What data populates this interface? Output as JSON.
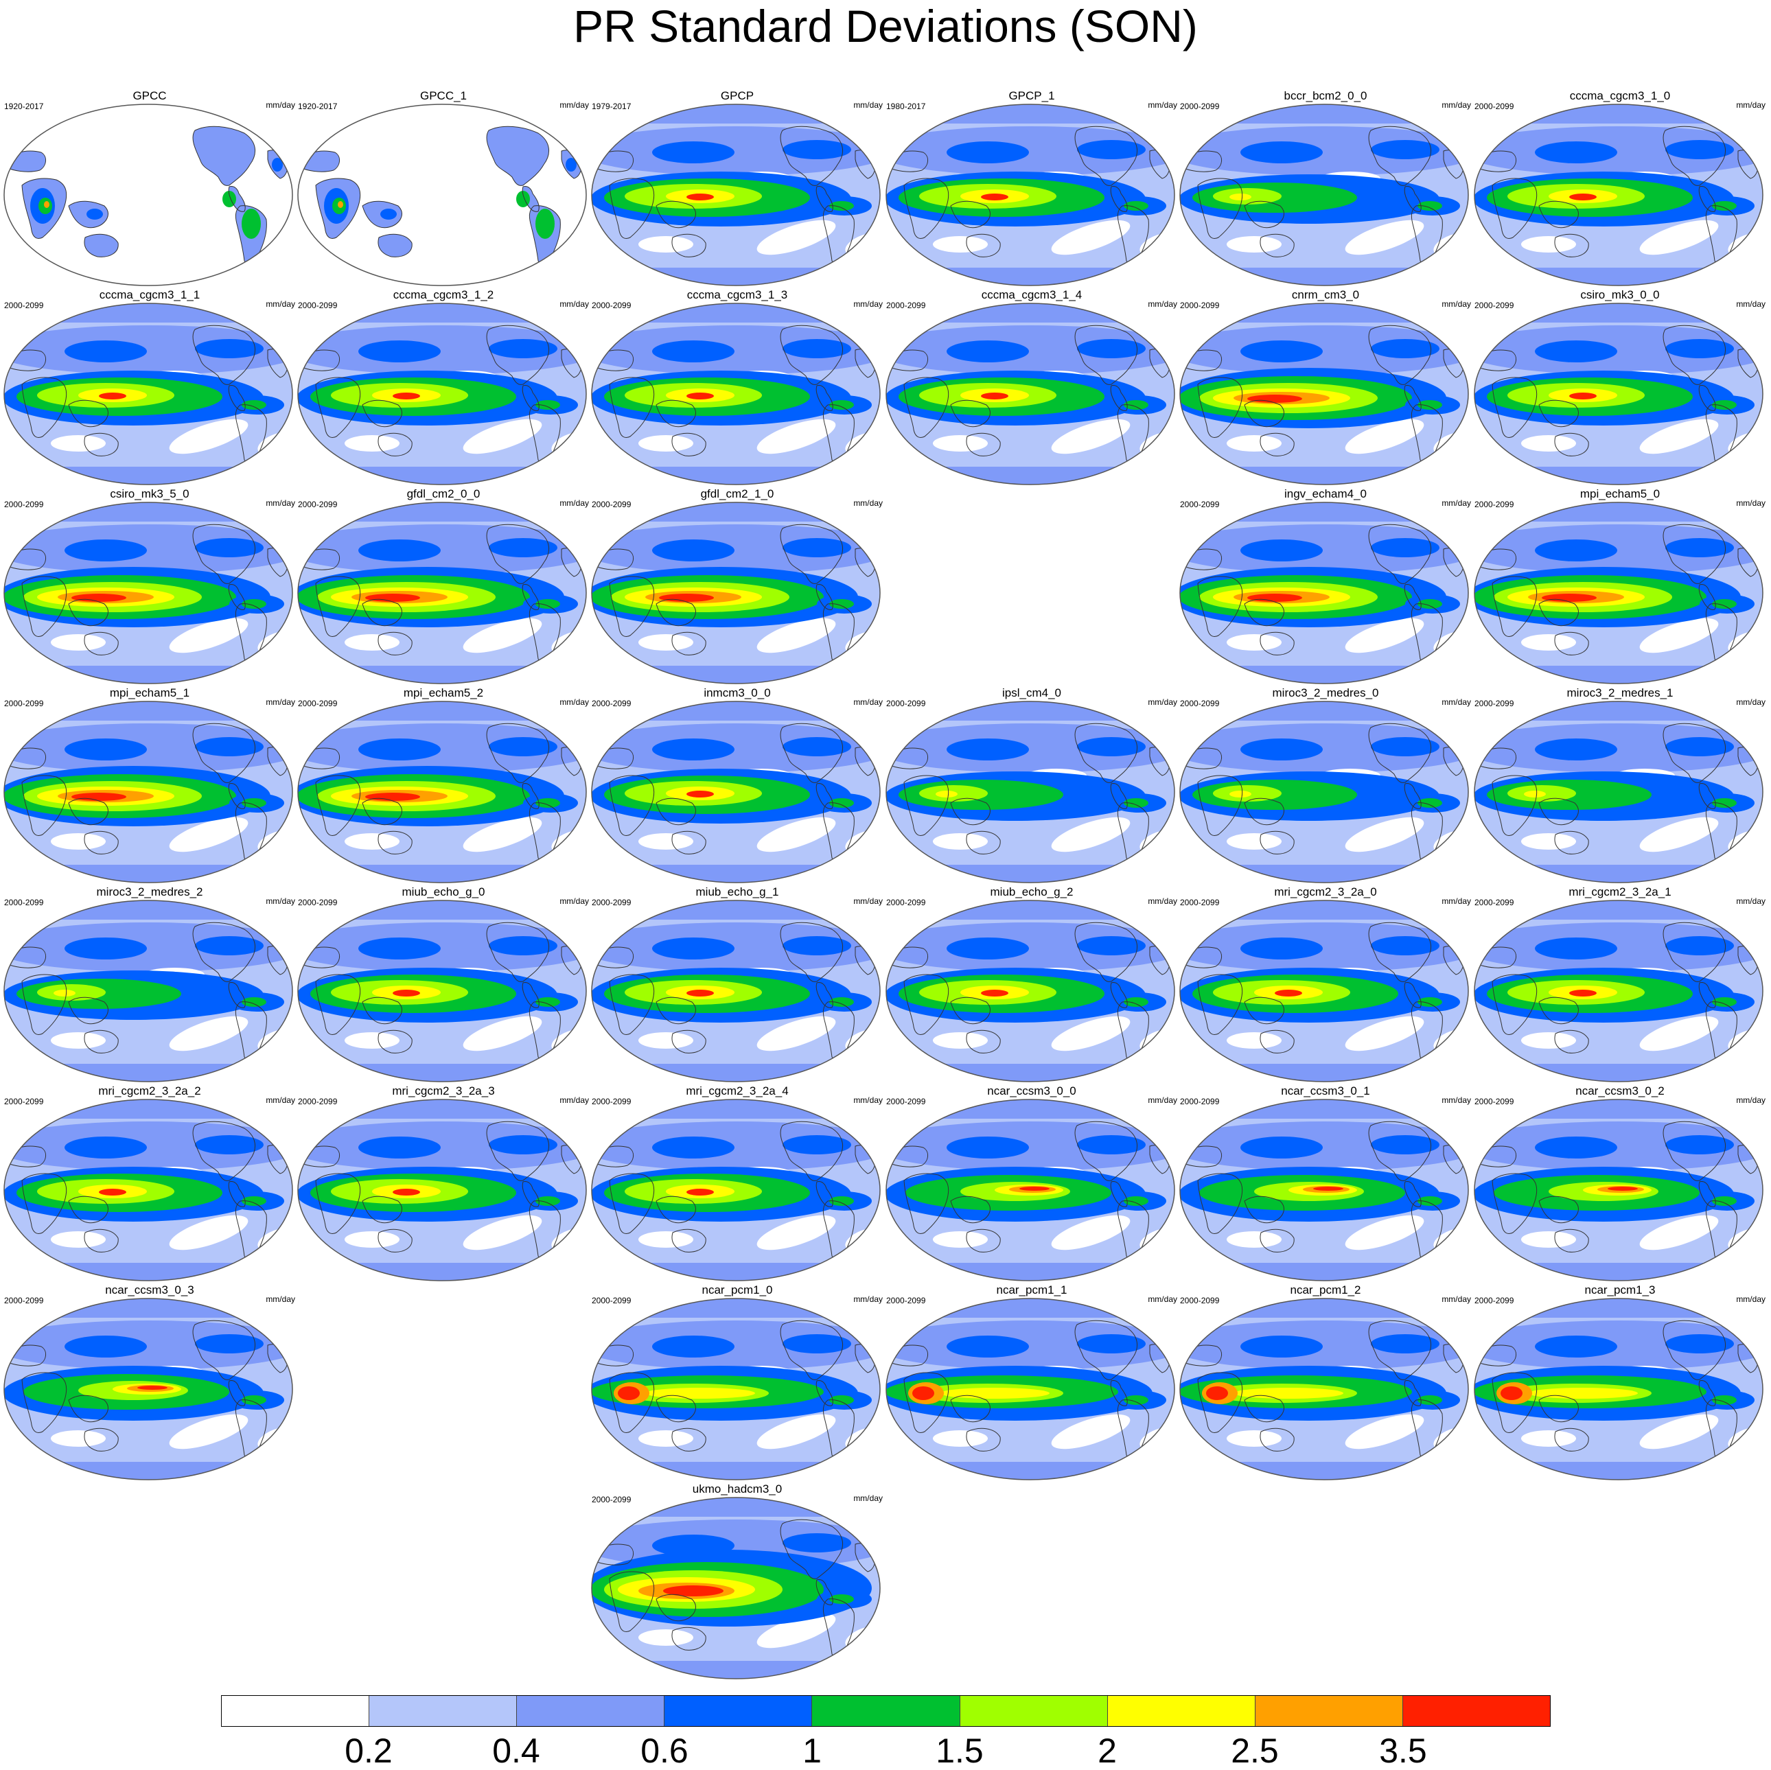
{
  "title": "PR Standard Deviations (SON)",
  "units": "mm/day",
  "colors": {
    "c0": "#ffffff",
    "c1": "#b4c6fa",
    "c2": "#7f9af8",
    "c3": "#0060ff",
    "c4": "#00c030",
    "c5": "#a0ff00",
    "c6": "#ffff00",
    "c7": "#ffa000",
    "c8": "#ff2000",
    "land_outline": "#333333",
    "frame": "#555555"
  },
  "colorbar": {
    "labels": [
      "0.2",
      "0.4",
      "0.6",
      "1",
      "1.5",
      "2",
      "2.5",
      "3.5"
    ]
  },
  "panels": [
    {
      "title": "GPCC",
      "years": "1920-2017",
      "units": "mm/day",
      "style": "obs",
      "slot": 0
    },
    {
      "title": "GPCC_1",
      "years": "1920-2017",
      "units": "mm/day",
      "style": "obs",
      "slot": 1
    },
    {
      "title": "GPCP",
      "years": "1979-2017",
      "units": "mm/day",
      "style": "full",
      "slot": 2
    },
    {
      "title": "GPCP_1",
      "years": "1980-2017",
      "units": "mm/day",
      "style": "full",
      "slot": 3
    },
    {
      "title": "bccr_bcm2_0_0",
      "years": "2000-2099",
      "units": "mm/day",
      "style": "weak",
      "slot": 4
    },
    {
      "title": "cccma_cgcm3_1_0",
      "years": "2000-2099",
      "units": "mm/day",
      "style": "full",
      "slot": 5
    },
    {
      "title": "cccma_cgcm3_1_1",
      "years": "2000-2099",
      "units": "mm/day",
      "style": "full",
      "slot": 6
    },
    {
      "title": "cccma_cgcm3_1_2",
      "years": "2000-2099",
      "units": "mm/day",
      "style": "full",
      "slot": 7
    },
    {
      "title": "cccma_cgcm3_1_3",
      "years": "2000-2099",
      "units": "mm/day",
      "style": "full",
      "slot": 8
    },
    {
      "title": "cccma_cgcm3_1_4",
      "years": "2000-2099",
      "units": "mm/day",
      "style": "full",
      "slot": 9
    },
    {
      "title": "cnrm_cm3_0",
      "years": "2000-2099",
      "units": "mm/day",
      "style": "strong",
      "slot": 10
    },
    {
      "title": "csiro_mk3_0_0",
      "years": "2000-2099",
      "units": "mm/day",
      "style": "full",
      "slot": 11
    },
    {
      "title": "csiro_mk3_5_0",
      "years": "2000-2099",
      "units": "mm/day",
      "style": "strong",
      "slot": 12
    },
    {
      "title": "gfdl_cm2_0_0",
      "years": "2000-2099",
      "units": "mm/day",
      "style": "strong",
      "slot": 13
    },
    {
      "title": "gfdl_cm2_1_0",
      "years": "2000-2099",
      "units": "mm/day",
      "style": "strong",
      "slot": 14
    },
    {
      "title": "ingv_echam4_0",
      "years": "2000-2099",
      "units": "mm/day",
      "style": "strong",
      "slot": 16
    },
    {
      "title": "mpi_echam5_0",
      "years": "2000-2099",
      "units": "mm/day",
      "style": "strong",
      "slot": 17
    },
    {
      "title": "mpi_echam5_1",
      "years": "2000-2099",
      "units": "mm/day",
      "style": "strong",
      "slot": 18
    },
    {
      "title": "mpi_echam5_2",
      "years": "2000-2099",
      "units": "mm/day",
      "style": "strong",
      "slot": 19
    },
    {
      "title": "inmcm3_0_0",
      "years": "2000-2099",
      "units": "mm/day",
      "style": "full",
      "slot": 20
    },
    {
      "title": "ipsl_cm4_0",
      "years": "2000-2099",
      "units": "mm/day",
      "style": "weak",
      "slot": 21
    },
    {
      "title": "miroc3_2_medres_0",
      "years": "2000-2099",
      "units": "mm/day",
      "style": "weak",
      "slot": 22
    },
    {
      "title": "miroc3_2_medres_1",
      "years": "2000-2099",
      "units": "mm/day",
      "style": "weak",
      "slot": 23
    },
    {
      "title": "miroc3_2_medres_2",
      "years": "2000-2099",
      "units": "mm/day",
      "style": "weak",
      "slot": 24
    },
    {
      "title": "miub_echo_g_0",
      "years": "2000-2099",
      "units": "mm/day",
      "style": "full",
      "slot": 25
    },
    {
      "title": "miub_echo_g_1",
      "years": "2000-2099",
      "units": "mm/day",
      "style": "full",
      "slot": 26
    },
    {
      "title": "miub_echo_g_2",
      "years": "2000-2099",
      "units": "mm/day",
      "style": "full",
      "slot": 27
    },
    {
      "title": "mri_cgcm2_3_2a_0",
      "years": "2000-2099",
      "units": "mm/day",
      "style": "full",
      "slot": 28
    },
    {
      "title": "mri_cgcm2_3_2a_1",
      "years": "2000-2099",
      "units": "mm/day",
      "style": "full",
      "slot": 29
    },
    {
      "title": "mri_cgcm2_3_2a_2",
      "years": "2000-2099",
      "units": "mm/day",
      "style": "full",
      "slot": 30
    },
    {
      "title": "mri_cgcm2_3_2a_3",
      "years": "2000-2099",
      "units": "mm/day",
      "style": "full",
      "slot": 31
    },
    {
      "title": "mri_cgcm2_3_2a_4",
      "years": "2000-2099",
      "units": "mm/day",
      "style": "full",
      "slot": 32
    },
    {
      "title": "ncar_ccsm3_0_0",
      "years": "2000-2099",
      "units": "mm/day",
      "style": "ccsm",
      "slot": 33
    },
    {
      "title": "ncar_ccsm3_0_1",
      "years": "2000-2099",
      "units": "mm/day",
      "style": "ccsm",
      "slot": 34
    },
    {
      "title": "ncar_ccsm3_0_2",
      "years": "2000-2099",
      "units": "mm/day",
      "style": "ccsm",
      "slot": 35
    },
    {
      "title": "ncar_ccsm3_0_3",
      "years": "2000-2099",
      "units": "mm/day",
      "style": "ccsm",
      "slot": 36
    },
    {
      "title": "ncar_pcm1_0",
      "years": "2000-2099",
      "units": "mm/day",
      "style": "pcm",
      "slot": 38
    },
    {
      "title": "ncar_pcm1_1",
      "years": "2000-2099",
      "units": "mm/day",
      "style": "pcm",
      "slot": 39
    },
    {
      "title": "ncar_pcm1_2",
      "years": "2000-2099",
      "units": "mm/day",
      "style": "pcm",
      "slot": 40
    },
    {
      "title": "ncar_pcm1_3",
      "years": "2000-2099",
      "units": "mm/day",
      "style": "pcm",
      "slot": 41
    },
    {
      "title": "ukmo_hadcm3_0",
      "years": "2000-2099",
      "units": "mm/day",
      "style": "hadcm",
      "slot": 44
    }
  ]
}
